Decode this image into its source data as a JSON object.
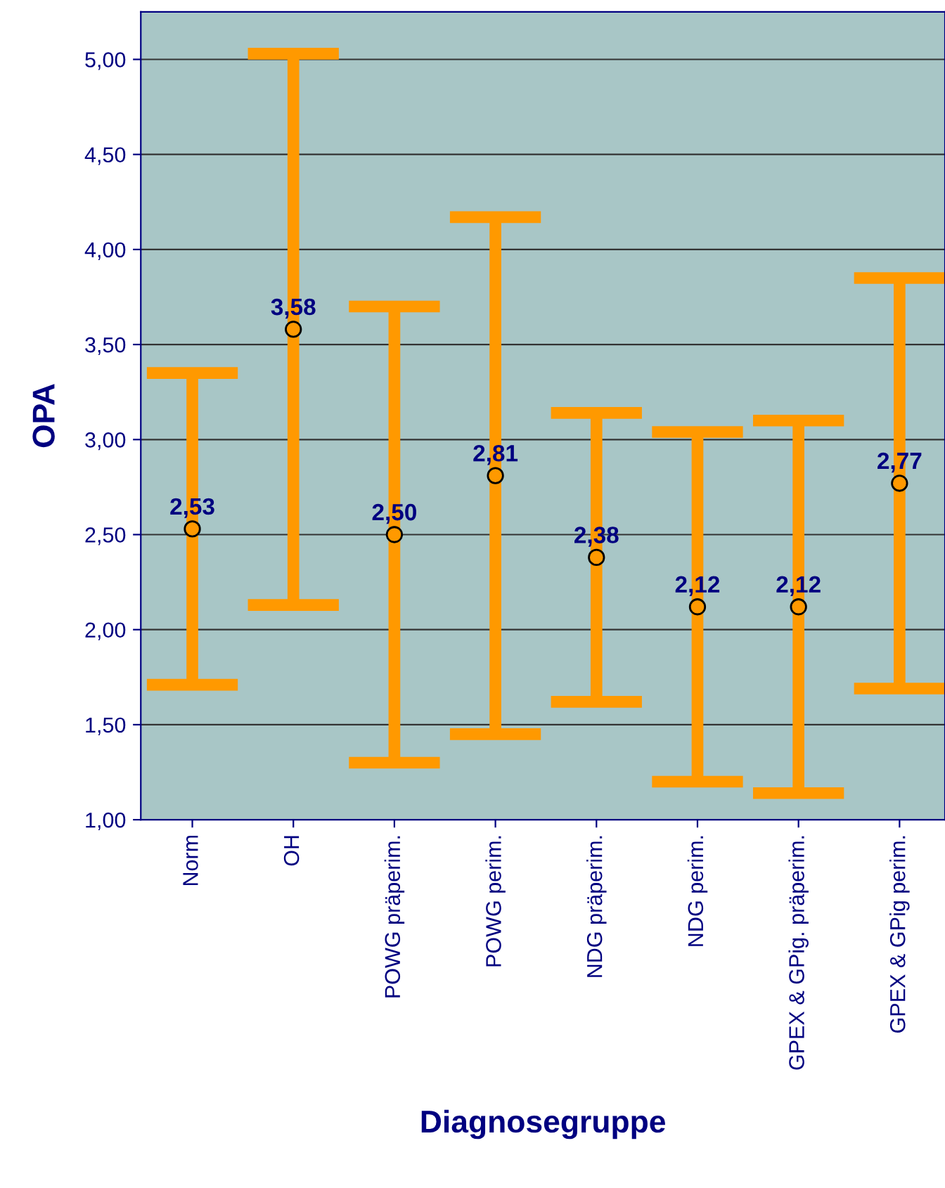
{
  "chart_data": {
    "type": "scatter",
    "xlabel": "Diagnosegruppe",
    "ylabel": "OPA",
    "categories": [
      "Norm",
      "OH",
      "POWG präperim.",
      "POWG perim.",
      "NDG präperim.",
      "NDG perim.",
      "GPEX & GPig. präperim.",
      "GPEX & GPig perim."
    ],
    "series": [
      {
        "color": "#ff9900",
        "values": [
          2.53,
          3.58,
          2.5,
          2.81,
          2.38,
          2.12,
          2.12,
          2.77
        ],
        "errors": [
          0.82,
          1.45,
          1.2,
          1.36,
          0.76,
          0.92,
          0.98,
          1.08
        ],
        "value_labels": [
          "2,53",
          "3,58",
          "2,50",
          "2,81",
          "2,38",
          "2,12",
          "2,12",
          "2,77"
        ]
      }
    ],
    "ylim": [
      1,
      5.25
    ],
    "yticks": [
      {
        "value": 1,
        "label": "1,00"
      },
      {
        "value": 1.5,
        "label": "1,50"
      },
      {
        "value": 2,
        "label": "2,00"
      },
      {
        "value": 2.5,
        "label": "2,50"
      },
      {
        "value": 3,
        "label": "3,00"
      },
      {
        "value": 3.5,
        "label": "3,50"
      },
      {
        "value": 4,
        "label": "4,00"
      },
      {
        "value": 4.5,
        "label": "4,50"
      },
      {
        "value": 5,
        "label": "5,00"
      }
    ],
    "grid": "y",
    "marker": "circle",
    "legend": false
  }
}
